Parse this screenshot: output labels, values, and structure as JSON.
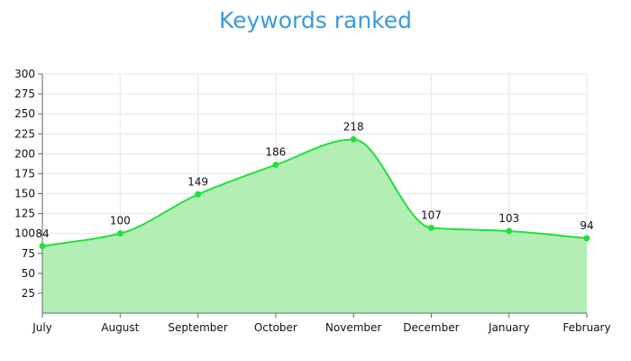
{
  "chart_data": {
    "type": "area",
    "title": "Keywords ranked",
    "xlabel": "",
    "ylabel": "",
    "categories": [
      "July",
      "August",
      "September",
      "October",
      "November",
      "December",
      "January",
      "February"
    ],
    "series": [
      {
        "values": [
          84,
          100,
          149,
          186,
          218,
          107,
          103,
          94
        ]
      }
    ],
    "ylim": [
      0,
      300
    ],
    "yticks": [
      25,
      50,
      75,
      100,
      125,
      150,
      175,
      200,
      225,
      250,
      275,
      300
    ],
    "grid": true,
    "legend": "none",
    "colors": {
      "title": "#3a9bd9",
      "line": "#22e03c",
      "fill": "#b3efb5",
      "grid": "#e6e6e6",
      "axis": "#666666"
    }
  }
}
